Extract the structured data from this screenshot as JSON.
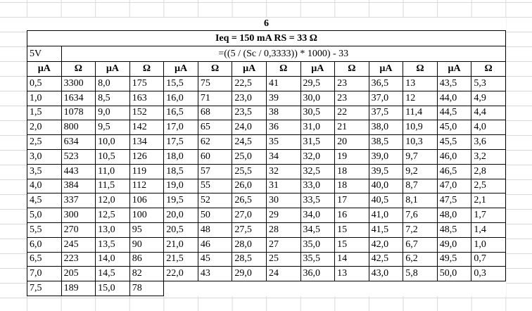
{
  "header": {
    "number": "6",
    "title": "Ieq = 150 mA   RS = 33 Ω"
  },
  "formula": {
    "label": "5V",
    "text": "=((5 / (Sc / 0,3333)) * 1000) - 33"
  },
  "table": {
    "columns": [
      "µA",
      "Ω",
      "µA",
      "Ω",
      "µA",
      "Ω",
      "µA",
      "Ω",
      "µA",
      "Ω",
      "µA",
      "Ω",
      "µA",
      "Ω"
    ],
    "rows": [
      [
        "0,5",
        "3300",
        "8,0",
        "175",
        "15,5",
        "75",
        "22,5",
        "41",
        "29,5",
        "23",
        "36,5",
        "13",
        "43,5",
        "5,3"
      ],
      [
        "1,0",
        "1634",
        "8,5",
        "163",
        "16,0",
        "71",
        "23,0",
        "39",
        "30,0",
        "23",
        "37,0",
        "12",
        "44,0",
        "4,9"
      ],
      [
        "1,5",
        "1078",
        "9,0",
        "152",
        "16,5",
        "68",
        "23,5",
        "38",
        "30,5",
        "22",
        "37,5",
        "11,4",
        "44,5",
        "4,4"
      ],
      [
        "2,0",
        "800",
        "9,5",
        "142",
        "17,0",
        "65",
        "24,0",
        "36",
        "31,0",
        "21",
        "38,0",
        "10,9",
        "45,0",
        "4,0"
      ],
      [
        "2,5",
        "634",
        "10,0",
        "134",
        "17,5",
        "62",
        "24,5",
        "35",
        "31,5",
        "20",
        "38,5",
        "10,3",
        "45,5",
        "3,6"
      ],
      [
        "3,0",
        "523",
        "10,5",
        "126",
        "18,0",
        "60",
        "25,0",
        "34",
        "32,0",
        "19",
        "39,0",
        "9,7",
        "46,0",
        "3,2"
      ],
      [
        "3,5",
        "443",
        "11,0",
        "119",
        "18,5",
        "57",
        "25,5",
        "32",
        "32,5",
        "18",
        "39,5",
        "9,2",
        "46,5",
        "2,8"
      ],
      [
        "4,0",
        "384",
        "11,5",
        "112",
        "19,0",
        "55",
        "26,0",
        "31",
        "33,0",
        "18",
        "40,0",
        "8,7",
        "47,0",
        "2,5"
      ],
      [
        "4,5",
        "337",
        "12,0",
        "106",
        "19,5",
        "52",
        "26,5",
        "30",
        "33,5",
        "17",
        "40,5",
        "8,1",
        "47,5",
        "2,1"
      ],
      [
        "5,0",
        "300",
        "12,5",
        "100",
        "20,0",
        "50",
        "27,0",
        "29",
        "34,0",
        "16",
        "41,0",
        "7,6",
        "48,0",
        "1,7"
      ],
      [
        "5,5",
        "270",
        "13,0",
        "95",
        "20,5",
        "48",
        "27,5",
        "28",
        "34,5",
        "15",
        "41,5",
        "7,2",
        "48,5",
        "1,4"
      ],
      [
        "6,0",
        "245",
        "13,5",
        "90",
        "21,0",
        "46",
        "28,0",
        "27",
        "35,0",
        "15",
        "42,0",
        "6,7",
        "49,0",
        "1,0"
      ],
      [
        "6,5",
        "223",
        "14,0",
        "86",
        "21,5",
        "45",
        "28,5",
        "25",
        "35,5",
        "14",
        "42,5",
        "6,2",
        "49,5",
        "0,7"
      ],
      [
        "7,0",
        "205",
        "14,5",
        "82",
        "22,0",
        "43",
        "29,0",
        "24",
        "36,0",
        "13",
        "43,0",
        "5,8",
        "50,0",
        "0,3"
      ],
      [
        "7,5",
        "189",
        "15,0",
        "78"
      ]
    ]
  }
}
